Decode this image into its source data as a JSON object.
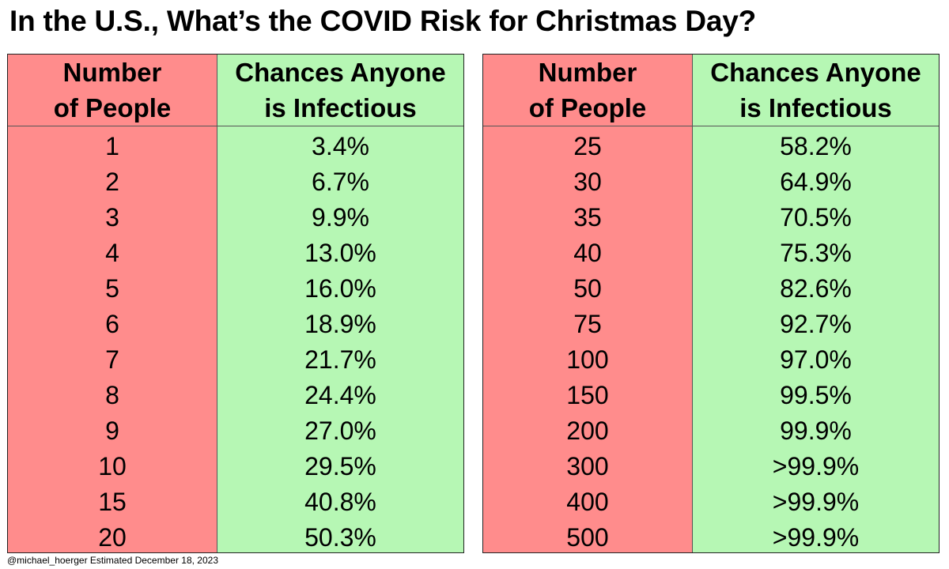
{
  "title": "In the U.S., What’s the COVID Risk for Christmas Day?",
  "credit": "@michael_hoerger  Estimated December 18, 2023",
  "colors": {
    "people_col": "#ff8c8c",
    "chance_col": "#b6f7b4"
  },
  "headers": {
    "people_line1": "Number",
    "people_line2": "of People",
    "chance_line1": "Chances Anyone",
    "chance_line2": "is Infectious"
  },
  "chart_data": {
    "type": "table",
    "title": "In the U.S., What’s the COVID Risk for Christmas Day?",
    "columns": [
      "Number of People",
      "Chances Anyone is Infectious"
    ],
    "left_rows": [
      {
        "people": "1",
        "chance": "3.4%"
      },
      {
        "people": "2",
        "chance": "6.7%"
      },
      {
        "people": "3",
        "chance": "9.9%"
      },
      {
        "people": "4",
        "chance": "13.0%"
      },
      {
        "people": "5",
        "chance": "16.0%"
      },
      {
        "people": "6",
        "chance": "18.9%"
      },
      {
        "people": "7",
        "chance": "21.7%"
      },
      {
        "people": "8",
        "chance": "24.4%"
      },
      {
        "people": "9",
        "chance": "27.0%"
      },
      {
        "people": "10",
        "chance": "29.5%"
      },
      {
        "people": "15",
        "chance": "40.8%"
      },
      {
        "people": "20",
        "chance": "50.3%"
      }
    ],
    "right_rows": [
      {
        "people": "25",
        "chance": "58.2%"
      },
      {
        "people": "30",
        "chance": "64.9%"
      },
      {
        "people": "35",
        "chance": "70.5%"
      },
      {
        "people": "40",
        "chance": "75.3%"
      },
      {
        "people": "50",
        "chance": "82.6%"
      },
      {
        "people": "75",
        "chance": "92.7%"
      },
      {
        "people": "100",
        "chance": "97.0%"
      },
      {
        "people": "150",
        "chance": "99.5%"
      },
      {
        "people": "200",
        "chance": "99.9%"
      },
      {
        "people": "300",
        "chance": ">99.9%"
      },
      {
        "people": "400",
        "chance": ">99.9%"
      },
      {
        "people": "500",
        "chance": ">99.9%"
      }
    ]
  }
}
